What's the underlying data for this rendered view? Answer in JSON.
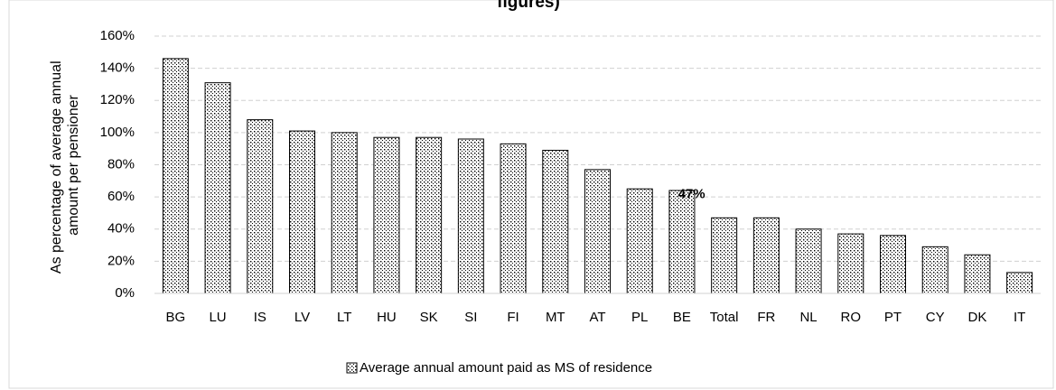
{
  "chart_data": {
    "type": "bar",
    "title": "figures)",
    "y_label": [
      "As percentage of average annual",
      "amount per pensioner"
    ],
    "categories": [
      "BG",
      "LU",
      "IS",
      "LV",
      "LT",
      "HU",
      "SK",
      "SI",
      "FI",
      "MT",
      "AT",
      "PL",
      "BE",
      "Total",
      "FR",
      "NL",
      "RO",
      "PT",
      "CY",
      "DK",
      "IT"
    ],
    "series": [
      {
        "name": "Average annual amount paid as MS of residence",
        "color": "#000000",
        "pattern": "dots",
        "values": [
          146,
          131,
          108,
          101,
          100,
          97,
          97,
          96,
          93,
          89,
          77,
          65,
          64,
          47,
          47,
          40,
          37,
          36,
          29,
          24,
          13
        ],
        "value_labels": [
          null,
          null,
          null,
          null,
          null,
          null,
          null,
          null,
          null,
          null,
          null,
          null,
          null,
          "47%",
          null,
          null,
          null,
          null,
          null,
          null,
          null
        ]
      }
    ],
    "ylim": [
      0,
      160
    ],
    "yticks": [
      {
        "value": 0,
        "label": "0%"
      },
      {
        "value": 20,
        "label": "20%"
      },
      {
        "value": 40,
        "label": "40%"
      },
      {
        "value": 60,
        "label": "60%"
      },
      {
        "value": 80,
        "label": "80%"
      },
      {
        "value": 100,
        "label": "100%"
      },
      {
        "value": 120,
        "label": "120%"
      },
      {
        "value": 140,
        "label": "140%"
      },
      {
        "value": 160,
        "label": "160%"
      }
    ],
    "grid": true,
    "legend": "bottom"
  }
}
